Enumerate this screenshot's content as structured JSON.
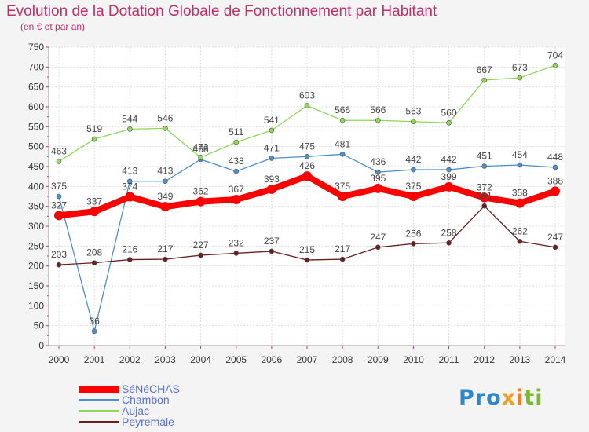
{
  "chart_data": {
    "type": "line",
    "title": "Evolution de la Dotation Globale de Fonctionnement par Habitant",
    "subtitle": "(en € et par an)",
    "categories": [
      "2000",
      "2001",
      "2002",
      "2003",
      "2004",
      "2005",
      "2006",
      "2007",
      "2008",
      "2009",
      "2010",
      "2011",
      "2012",
      "2013",
      "2014"
    ],
    "ylim": [
      0,
      750
    ],
    "y_ticks": [
      0,
      50,
      100,
      150,
      200,
      250,
      300,
      350,
      400,
      450,
      500,
      550,
      600,
      650,
      700,
      750
    ],
    "grid": true,
    "legend_position": "bottom-left",
    "series": [
      {
        "name": "SéNéCHAS",
        "color": "#ff0000",
        "values": [
          327,
          337,
          374,
          349,
          362,
          367,
          393,
          426,
          375,
          395,
          375,
          399,
          372,
          358,
          388
        ]
      },
      {
        "name": "Chambon",
        "color": "#4f8ec8",
        "values": [
          375,
          36,
          413,
          413,
          468,
          438,
          471,
          475,
          481,
          436,
          442,
          442,
          451,
          454,
          448
        ]
      },
      {
        "name": "Aujac",
        "color": "#8fd65a",
        "values": [
          463,
          519,
          544,
          546,
          473,
          511,
          541,
          603,
          566,
          566,
          563,
          560,
          667,
          673,
          704
        ]
      },
      {
        "name": "Peyremale",
        "color": "#6a1f1f",
        "values": [
          203,
          208,
          216,
          217,
          227,
          232,
          237,
          215,
          217,
          247,
          256,
          258,
          351,
          262,
          247
        ]
      }
    ]
  },
  "logo": {
    "p1": "Pro",
    "p2": "x",
    "p3": "i",
    "p4": "ti"
  }
}
